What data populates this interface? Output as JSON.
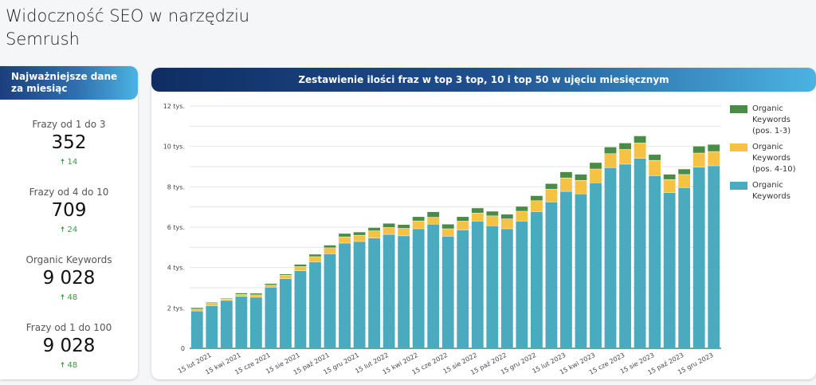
{
  "page": {
    "title": "Widoczność SEO w narzędziu Semrush"
  },
  "summary": {
    "header": "Najważniejsze dane za miesiąc",
    "stats": [
      {
        "label": "Frazy od 1 do 3",
        "value": "352",
        "delta": "14",
        "trend": "up"
      },
      {
        "label": "Frazy od 4 do 10",
        "value": "709",
        "delta": "24",
        "trend": "up"
      },
      {
        "label": "Organic Keywords",
        "value": "9 028",
        "delta": "48",
        "trend": "up"
      },
      {
        "label": "Frazy od 1 do 100",
        "value": "9 028",
        "delta": "48",
        "trend": "up"
      }
    ],
    "up_icon": "arrow-up-icon",
    "delta_color": "#3c9a3c"
  },
  "chart_data": {
    "type": "bar",
    "stacked": true,
    "title": "Zestawienie ilości fraz w top 3 top, 10 i top 50 w ujęciu miesięcznym",
    "x_tick_labels": [
      "15 lut 2021",
      "15 kwi 2021",
      "15 cze 2021",
      "15 sie 2021",
      "15 paź 2021",
      "15 gru 2021",
      "15 lut 2022",
      "15 kwi 2022",
      "15 cze 2022",
      "15 sie 2022",
      "15 paź 2022",
      "15 gru 2022",
      "15 lut 2023",
      "15 kwi 2023",
      "15 cze 2023",
      "15 sie 2023",
      "15 paź 2023",
      "15 gru 2023"
    ],
    "y_ticks": [
      {
        "value": 0,
        "label": "0"
      },
      {
        "value": 2000,
        "label": "2 tys."
      },
      {
        "value": 4000,
        "label": "4 tys."
      },
      {
        "value": 6000,
        "label": "6 tys."
      },
      {
        "value": 8000,
        "label": "8 tys."
      },
      {
        "value": 10000,
        "label": "10 tys."
      },
      {
        "value": 12000,
        "label": "12 tys."
      }
    ],
    "ylim": [
      0,
      12000
    ],
    "grid": true,
    "legend_position": "right",
    "series": [
      {
        "name": "Organic Keywords",
        "color": "#4aabbf",
        "values": [
          1840,
          2100,
          2360,
          2560,
          2520,
          3020,
          3440,
          3830,
          4270,
          4670,
          5200,
          5280,
          5450,
          5630,
          5560,
          5910,
          6140,
          5540,
          5850,
          6290,
          6060,
          5910,
          6290,
          6760,
          7240,
          7760,
          7640,
          8190,
          8940,
          9110,
          9400,
          8540,
          7700,
          7950,
          8960,
          9028
        ]
      },
      {
        "name": "Organic Keywords (pos. 4-10)",
        "color": "#f6c244",
        "values": [
          90,
          120,
          70,
          100,
          120,
          100,
          170,
          210,
          260,
          300,
          310,
          310,
          360,
          350,
          370,
          390,
          340,
          370,
          440,
          400,
          490,
          490,
          490,
          540,
          630,
          670,
          670,
          680,
          690,
          730,
          760,
          760,
          650,
          650,
          700,
          709
        ]
      },
      {
        "name": "Organic Keywords (pos. 1-3)",
        "color": "#4a8c45",
        "values": [
          70,
          50,
          40,
          70,
          80,
          80,
          60,
          110,
          120,
          130,
          170,
          160,
          160,
          200,
          190,
          210,
          270,
          230,
          220,
          250,
          230,
          230,
          240,
          250,
          280,
          300,
          300,
          320,
          330,
          320,
          350,
          290,
          260,
          270,
          340,
          352
        ]
      }
    ],
    "legend": [
      {
        "lines": [
          "Organic",
          "Keywords",
          "(pos. 1-3)"
        ],
        "color": "#4a8c45"
      },
      {
        "lines": [
          "Organic",
          "Keywords",
          "(pos. 4-10)"
        ],
        "color": "#f6c244"
      },
      {
        "lines": [
          "Organic",
          "Keywords"
        ],
        "color": "#4aabbf"
      }
    ]
  }
}
